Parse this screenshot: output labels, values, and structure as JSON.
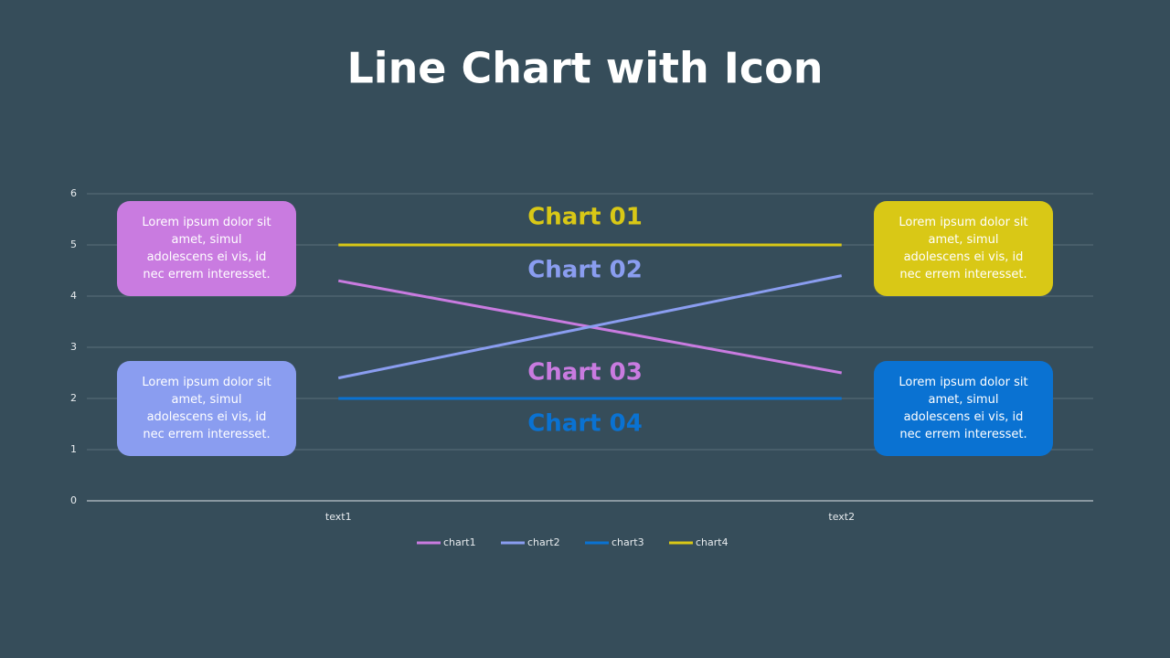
{
  "chart_data": {
    "type": "line",
    "title": "Line Chart with Icon",
    "categories": [
      "text1",
      "text2"
    ],
    "series": [
      {
        "name": "chart1",
        "color": "#c97be0",
        "values": [
          4.3,
          2.5
        ]
      },
      {
        "name": "chart2",
        "color": "#8a9df0",
        "values": [
          2.4,
          4.4
        ]
      },
      {
        "name": "chart3",
        "color": "#0a72d2",
        "values": [
          2,
          2
        ]
      },
      {
        "name": "chart4",
        "color": "#d9c816",
        "values": [
          5,
          5
        ]
      }
    ],
    "ylim": [
      0,
      6
    ],
    "yticks": [
      0,
      1,
      2,
      3,
      4,
      5,
      6
    ],
    "grid": true,
    "legend": "bottom",
    "annotations": [
      {
        "text": "Chart 01",
        "color": "#d9c816"
      },
      {
        "text": "Chart 02",
        "color": "#8a9df0"
      },
      {
        "text": "Chart 03",
        "color": "#c97be0"
      },
      {
        "text": "Chart 04",
        "color": "#0a72d2"
      }
    ],
    "notes": [
      {
        "text": "Lorem ipsum dolor sit amet, simul adolescens ei vis, id nec errem interesset.",
        "color": "#c97be0"
      },
      {
        "text": "Lorem ipsum dolor sit amet, simul adolescens ei vis, id nec errem interesset.",
        "color": "#d9c816"
      },
      {
        "text": "Lorem ipsum dolor sit amet, simul adolescens ei vis, id nec errem interesset.",
        "color": "#8a9df0"
      },
      {
        "text": "Lorem ipsum dolor sit amet, simul adolescens ei vis, id nec errem interesset.",
        "color": "#0a72d2"
      }
    ]
  }
}
